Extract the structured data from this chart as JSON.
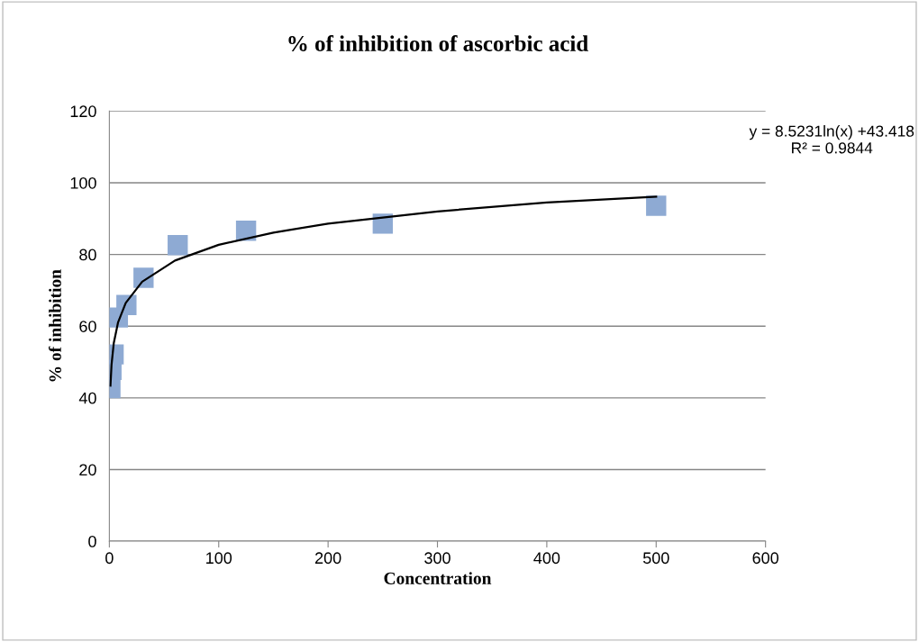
{
  "chart_data": {
    "type": "scatter",
    "title": "% of inhibition of ascorbic acid",
    "xlabel": "Concentration",
    "ylabel": "% of inhibition",
    "series": [
      {
        "color": "#8eaad3",
        "marker": "square",
        "x": [
          0.98,
          1.95,
          3.9,
          7.8,
          15.6,
          31.25,
          62.5,
          125,
          250,
          500
        ],
        "values": [
          42.7,
          47.8,
          52.1,
          62.4,
          65.9,
          73.5,
          82.6,
          86.6,
          88.6,
          93.6
        ]
      },
      {
        "type": "line",
        "color": "#000000",
        "marker": "none",
        "line_style": "solid",
        "x": [
          1,
          2,
          4,
          8,
          15,
          30,
          60,
          100,
          150,
          200,
          300,
          400,
          500
        ],
        "values": [
          43.4,
          49.3,
          55.2,
          61.1,
          66.5,
          72.4,
          78.3,
          82.7,
          86.1,
          88.6,
          92.0,
          94.5,
          96.1
        ]
      }
    ],
    "annotations": [
      "y = 8.5231ln(x) +43.418\nR² = 0.9844"
    ],
    "xlim": [
      0,
      600
    ],
    "xticks": [
      0,
      100,
      200,
      300,
      400,
      500,
      600
    ],
    "ylim": [
      0,
      120
    ],
    "yticks": [
      0,
      20,
      40,
      60,
      80,
      100,
      120
    ],
    "grid": "y",
    "legend": false
  }
}
